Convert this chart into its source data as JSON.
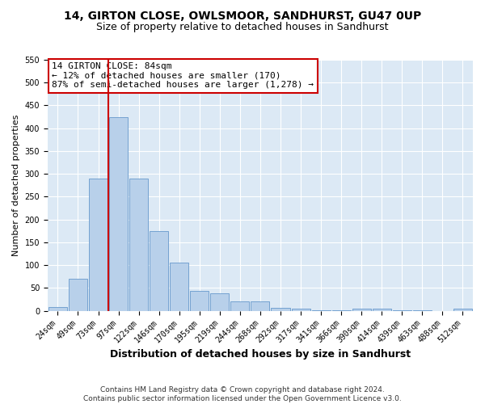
{
  "title": "14, GIRTON CLOSE, OWLSMOOR, SANDHURST, GU47 0UP",
  "subtitle": "Size of property relative to detached houses in Sandhurst",
  "xlabel": "Distribution of detached houses by size in Sandhurst",
  "ylabel": "Number of detached properties",
  "bin_labels": [
    "24sqm",
    "49sqm",
    "73sqm",
    "97sqm",
    "122sqm",
    "146sqm",
    "170sqm",
    "195sqm",
    "219sqm",
    "244sqm",
    "268sqm",
    "292sqm",
    "317sqm",
    "341sqm",
    "366sqm",
    "390sqm",
    "414sqm",
    "439sqm",
    "463sqm",
    "488sqm",
    "512sqm"
  ],
  "bar_values": [
    8,
    70,
    290,
    425,
    290,
    175,
    105,
    43,
    38,
    20,
    20,
    7,
    4,
    1,
    1,
    5,
    5,
    1,
    1,
    0,
    4
  ],
  "bar_color": "#b8d0ea",
  "bar_edge_color": "#6699cc",
  "vline_color": "#cc0000",
  "vline_x_idx": 2.5,
  "annotation_title": "14 GIRTON CLOSE: 84sqm",
  "annotation_line1": "← 12% of detached houses are smaller (170)",
  "annotation_line2": "87% of semi-detached houses are larger (1,278) →",
  "annotation_box_facecolor": "#ffffff",
  "annotation_box_edgecolor": "#cc0000",
  "ylim": [
    0,
    550
  ],
  "yticks": [
    0,
    50,
    100,
    150,
    200,
    250,
    300,
    350,
    400,
    450,
    500,
    550
  ],
  "footer_line1": "Contains HM Land Registry data © Crown copyright and database right 2024.",
  "footer_line2": "Contains public sector information licensed under the Open Government Licence v3.0.",
  "plot_bg_color": "#dce9f5",
  "fig_bg_color": "#ffffff",
  "grid_color": "#ffffff",
  "title_fontsize": 10,
  "subtitle_fontsize": 9,
  "xlabel_fontsize": 9,
  "ylabel_fontsize": 8,
  "tick_fontsize": 7,
  "footer_fontsize": 6.5,
  "annotation_fontsize": 8
}
